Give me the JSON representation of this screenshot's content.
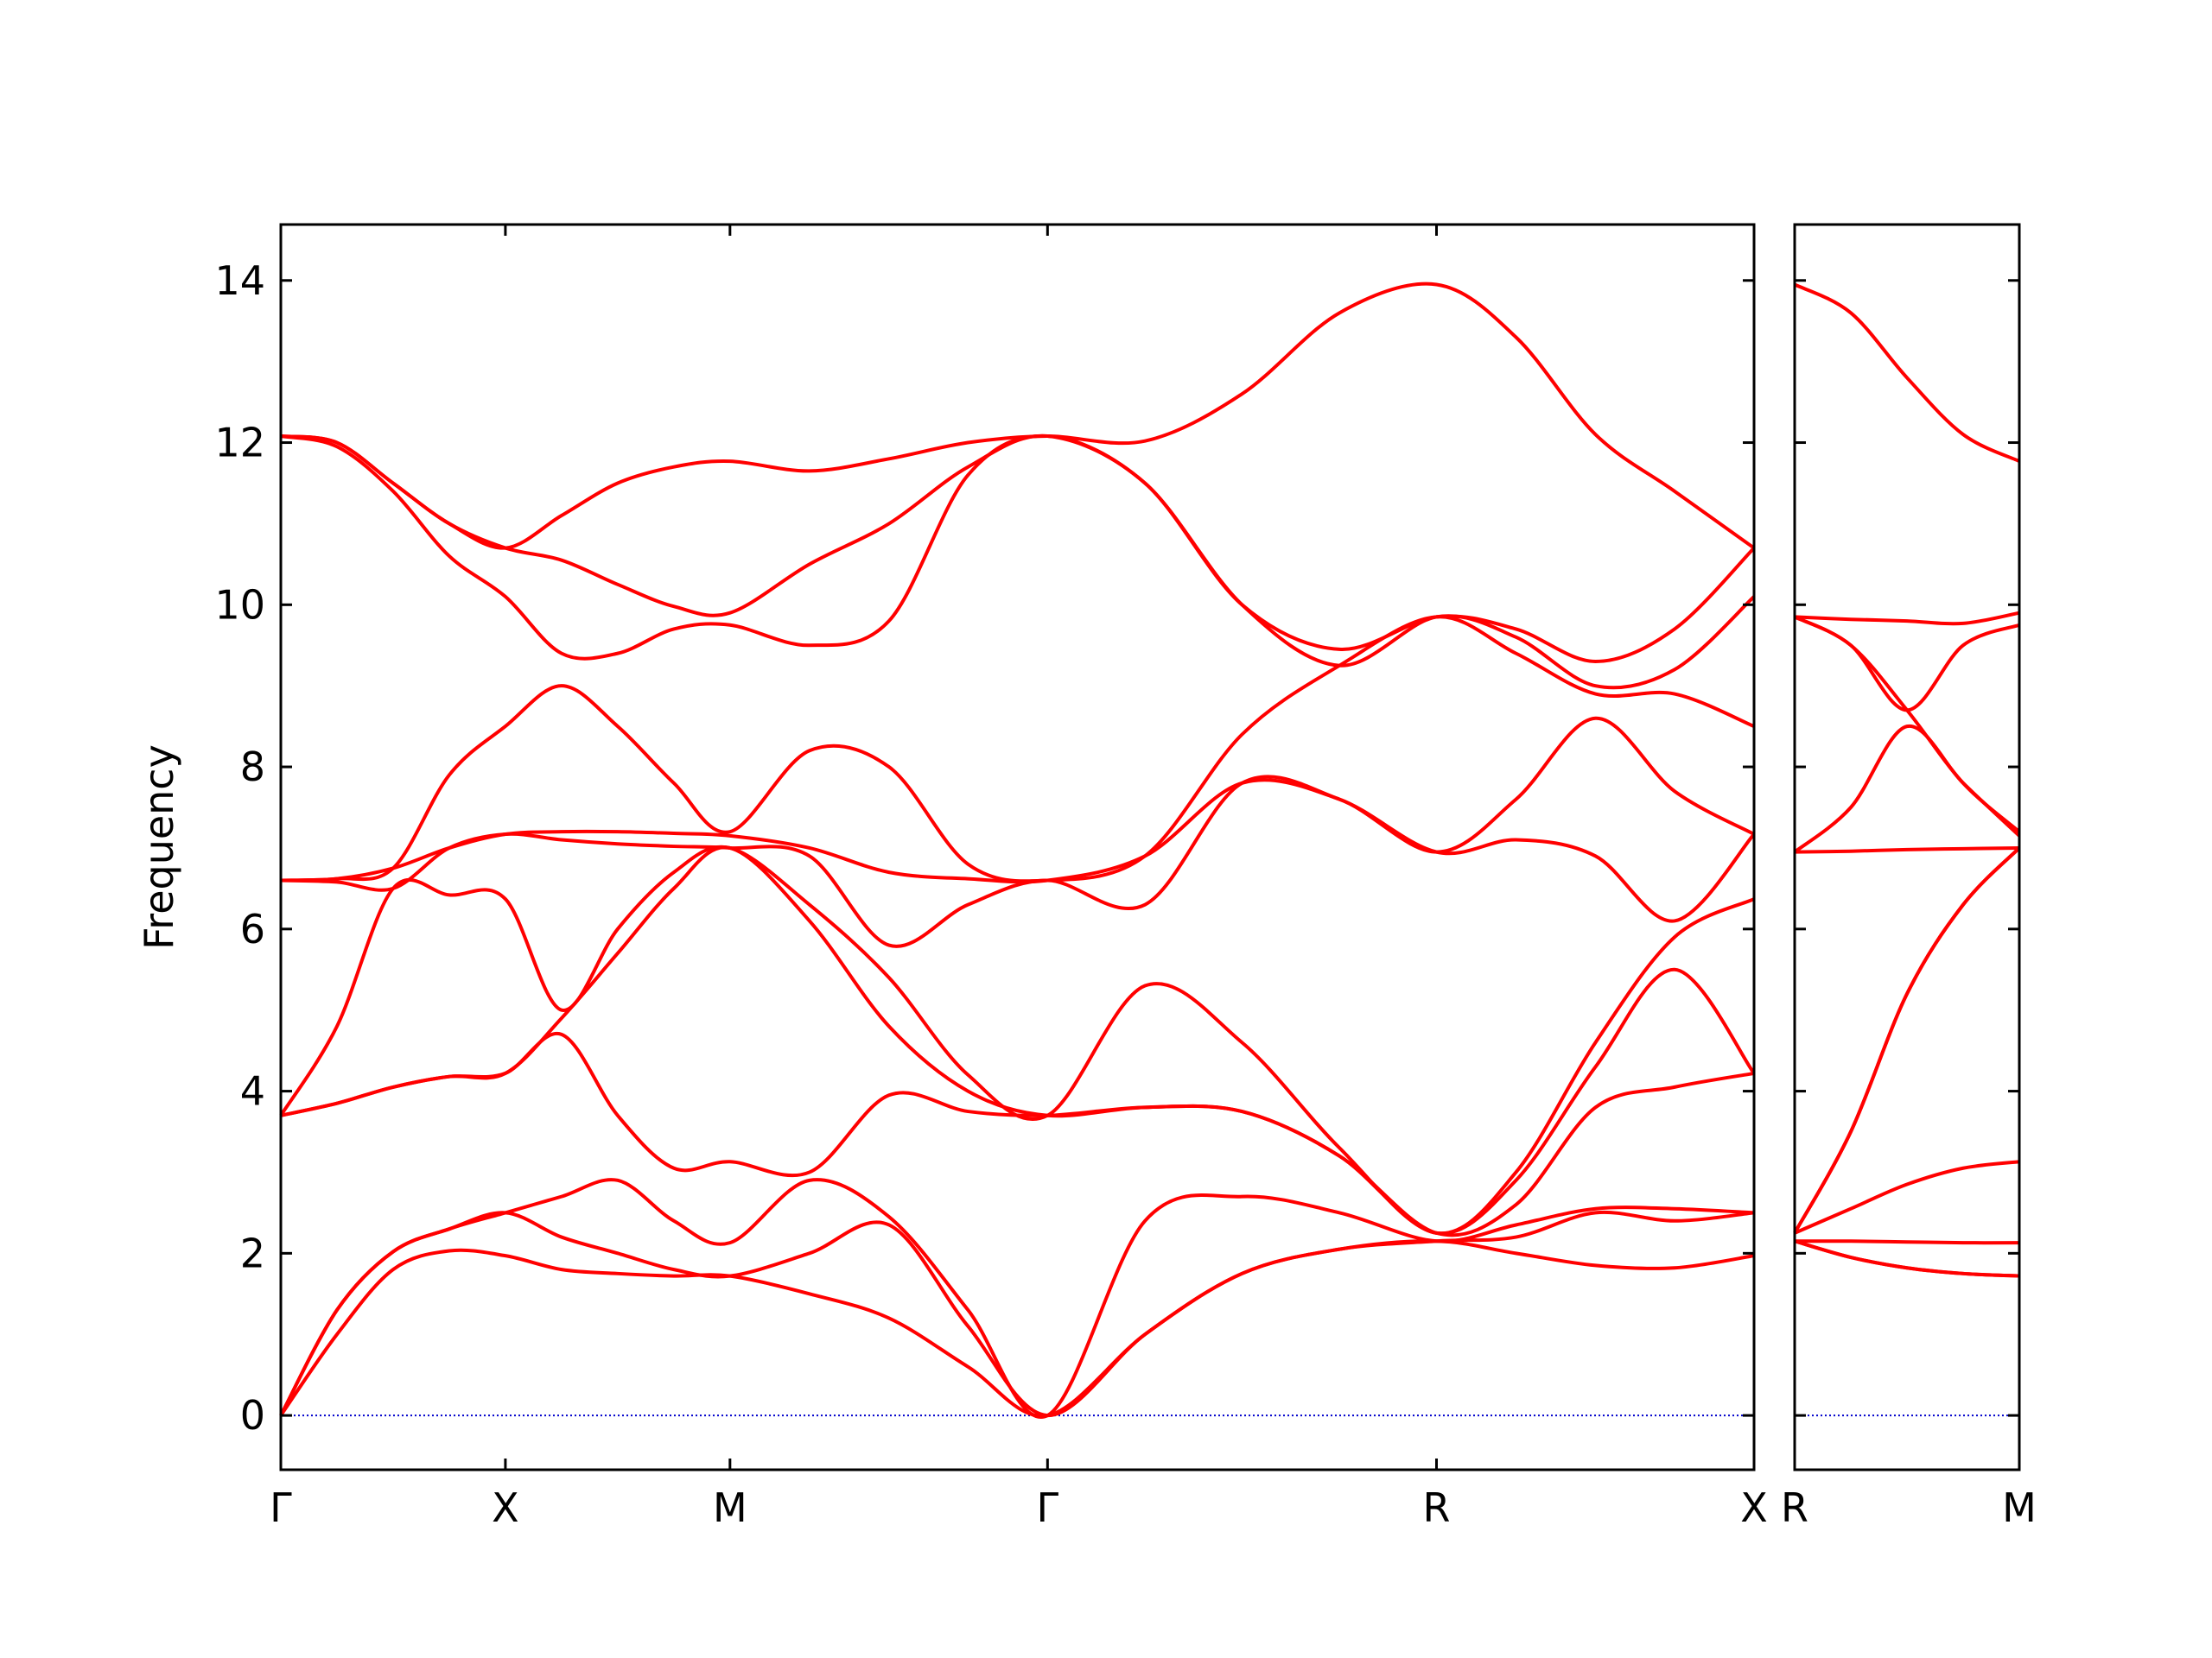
{
  "chart_data": [
    {
      "type": "line",
      "ylabel": "Frequency",
      "x": [
        0,
        0.125,
        0.25,
        0.375,
        0.5,
        0.625,
        0.75,
        0.875,
        1.0,
        1.177,
        1.354,
        1.53,
        1.707,
        1.924,
        2.14,
        2.357,
        2.573,
        2.75,
        2.927,
        3.103,
        3.28
      ],
      "xlim": [
        0,
        3.28
      ],
      "xticks": [
        {
          "value": 0,
          "label": "Γ"
        },
        {
          "value": 0.5,
          "label": "X"
        },
        {
          "value": 1.0,
          "label": "M"
        },
        {
          "value": 1.707,
          "label": "Γ"
        },
        {
          "value": 2.573,
          "label": "R"
        },
        {
          "value": 3.28,
          "label": "X"
        }
      ],
      "ylim": [
        -0.67,
        14.69
      ],
      "yticks": [
        0,
        2,
        4,
        6,
        8,
        10,
        12,
        14
      ],
      "show_ytick_labels": true,
      "zero_line_color": "#0000cc",
      "series": [
        {
          "color": "#ff0000",
          "values": [
            0,
            1.0,
            1.8,
            2.03,
            1.97,
            1.8,
            1.75,
            1.72,
            1.72,
            1.5,
            1.2,
            0.6,
            0,
            1.0,
            1.75,
            2.05,
            2.15,
            2.0,
            1.85,
            1.82,
            1.97
          ]
        },
        {
          "color": "#ff0000",
          "values": [
            0,
            1.3,
            2.02,
            2.3,
            2.5,
            2.2,
            2.0,
            1.8,
            1.72,
            2.0,
            2.35,
            1.1,
            0,
            1.0,
            1.75,
            2.05,
            2.15,
            2.2,
            2.5,
            2.4,
            2.5
          ]
        },
        {
          "color": "#ff0000",
          "values": [
            0,
            1.3,
            2.02,
            2.3,
            2.5,
            2.7,
            2.9,
            2.4,
            2.13,
            2.9,
            2.45,
            1.3,
            0,
            2.4,
            2.7,
            2.5,
            2.15,
            2.35,
            2.55,
            2.55,
            2.5
          ]
        },
        {
          "color": "#ff0000",
          "values": [
            3.7,
            3.85,
            4.05,
            4.18,
            4.22,
            4.7,
            3.7,
            3.05,
            3.13,
            3.0,
            3.95,
            3.75,
            3.7,
            3.8,
            3.75,
            3.2,
            2.25,
            2.6,
            3.8,
            4.05,
            4.22
          ]
        },
        {
          "color": "#ff0000",
          "values": [
            3.7,
            3.85,
            4.05,
            4.18,
            4.22,
            4.9,
            5.7,
            6.5,
            7.0,
            6.1,
            4.8,
            4.0,
            3.7,
            3.8,
            3.75,
            3.2,
            2.25,
            2.9,
            4.3,
            5.5,
            4.22
          ]
        },
        {
          "color": "#ff0000",
          "values": [
            3.7,
            4.8,
            6.5,
            6.42,
            6.37,
            5.0,
            6.0,
            6.7,
            7.0,
            6.3,
            5.4,
            4.2,
            3.7,
            5.3,
            4.6,
            3.3,
            2.25,
            3.0,
            4.6,
            5.9,
            6.37
          ]
        },
        {
          "color": "#ff0000",
          "values": [
            6.6,
            6.58,
            6.5,
            7.0,
            7.17,
            7.1,
            7.05,
            7.02,
            7.0,
            6.9,
            5.8,
            6.3,
            6.6,
            6.3,
            7.8,
            7.6,
            6.95,
            7.1,
            6.9,
            6.1,
            7.17
          ]
        },
        {
          "color": "#ff0000",
          "values": [
            6.6,
            6.62,
            6.75,
            7.0,
            7.17,
            7.2,
            7.2,
            7.18,
            7.15,
            7.0,
            6.7,
            6.62,
            6.6,
            6.9,
            7.8,
            7.6,
            6.95,
            7.6,
            8.6,
            7.7,
            7.17
          ]
        },
        {
          "color": "#ff0000",
          "values": [
            6.6,
            6.62,
            6.75,
            7.9,
            8.5,
            9.0,
            8.5,
            7.8,
            7.2,
            8.2,
            8.0,
            6.8,
            6.6,
            6.9,
            8.4,
            9.25,
            9.85,
            9.4,
            8.9,
            8.9,
            8.5
          ]
        },
        {
          "color": "#ff0000",
          "values": [
            12.08,
            11.95,
            11.4,
            10.6,
            10.1,
            9.4,
            9.4,
            9.7,
            9.75,
            9.5,
            9.8,
            11.6,
            12.08,
            11.5,
            10.0,
            9.25,
            9.85,
            9.6,
            9.0,
            9.2,
            10.1
          ]
        },
        {
          "color": "#ff0000",
          "values": [
            12.08,
            12.0,
            11.5,
            11.0,
            10.7,
            10.55,
            10.25,
            9.98,
            9.9,
            10.5,
            11.0,
            11.7,
            12.08,
            11.5,
            10.0,
            9.45,
            9.85,
            9.7,
            9.3,
            9.7,
            10.7
          ]
        },
        {
          "color": "#ff0000",
          "values": [
            12.08,
            12.0,
            11.5,
            11.0,
            10.7,
            11.1,
            11.5,
            11.7,
            11.77,
            11.65,
            11.8,
            12.0,
            12.08,
            12.02,
            12.6,
            13.6,
            13.95,
            13.3,
            12.1,
            11.4,
            10.7
          ]
        }
      ]
    },
    {
      "type": "line",
      "x": [
        0,
        0.125,
        0.25,
        0.375,
        0.5
      ],
      "xlim": [
        0,
        0.5
      ],
      "xticks": [
        {
          "value": 0,
          "label": "R"
        },
        {
          "value": 0.5,
          "label": "M"
        }
      ],
      "ylim": [
        -0.67,
        14.69
      ],
      "yticks": [
        0,
        2,
        4,
        6,
        8,
        10,
        12,
        14
      ],
      "show_ytick_labels": false,
      "zero_line_color": "#0000cc",
      "series": [
        {
          "color": "#ff0000",
          "values": [
            2.15,
            1.95,
            1.82,
            1.75,
            1.72
          ]
        },
        {
          "color": "#ff0000",
          "values": [
            2.15,
            1.95,
            1.82,
            1.75,
            1.72
          ]
        },
        {
          "color": "#ff0000",
          "values": [
            2.15,
            2.15,
            2.14,
            2.13,
            2.13
          ]
        },
        {
          "color": "#ff0000",
          "values": [
            2.25,
            2.55,
            2.85,
            3.05,
            3.13
          ]
        },
        {
          "color": "#ff0000",
          "values": [
            2.25,
            3.5,
            5.2,
            6.3,
            7.0
          ]
        },
        {
          "color": "#ff0000",
          "values": [
            2.25,
            3.5,
            5.2,
            6.3,
            7.0
          ]
        },
        {
          "color": "#ff0000",
          "values": [
            6.95,
            6.96,
            6.98,
            6.99,
            7.0
          ]
        },
        {
          "color": "#ff0000",
          "values": [
            6.95,
            7.5,
            8.5,
            7.8,
            7.15
          ]
        },
        {
          "color": "#ff0000",
          "values": [
            9.85,
            9.5,
            8.7,
            7.8,
            7.2
          ]
        },
        {
          "color": "#ff0000",
          "values": [
            9.85,
            9.5,
            8.7,
            9.5,
            9.75
          ]
        },
        {
          "color": "#ff0000",
          "values": [
            9.85,
            9.82,
            9.8,
            9.77,
            9.9
          ]
        },
        {
          "color": "#ff0000",
          "values": [
            13.95,
            13.6,
            12.8,
            12.1,
            11.77
          ]
        }
      ]
    }
  ]
}
